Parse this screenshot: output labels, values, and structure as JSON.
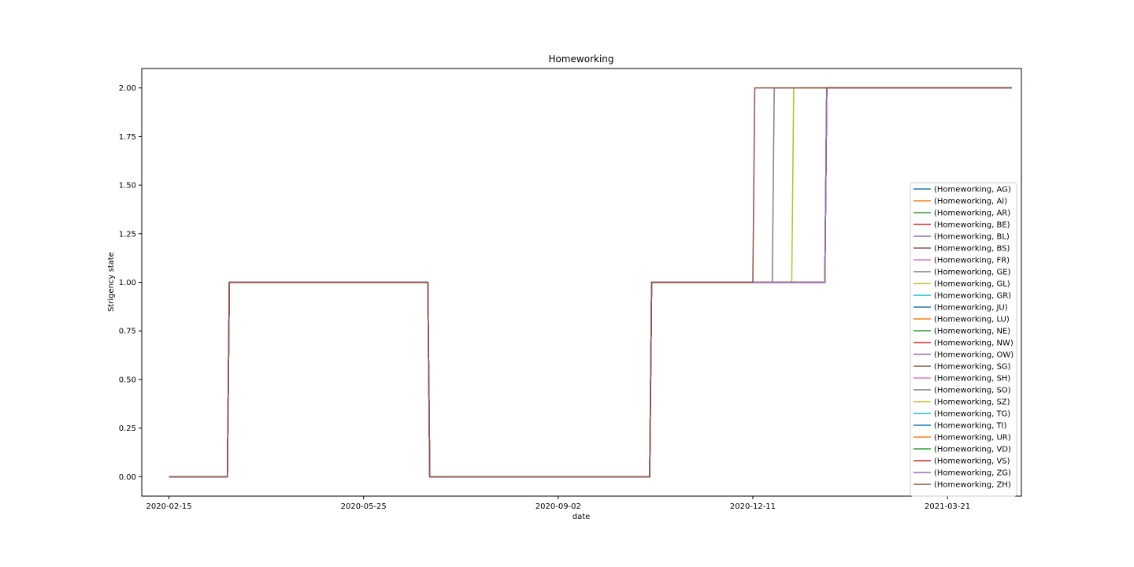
{
  "chart_data": {
    "type": "line",
    "title": "Homeworking",
    "xlabel": "date",
    "ylabel": "Strigency state",
    "x_axis": "date",
    "xlim": [
      "2020-02-01",
      "2021-04-28"
    ],
    "ylim": [
      -0.1,
      2.1
    ],
    "x_ticks": [
      "2020-02-15",
      "2020-05-25",
      "2020-09-02",
      "2020-12-11",
      "2021-03-21"
    ],
    "y_ticks": [
      "0.00",
      "0.25",
      "0.50",
      "0.75",
      "1.00",
      "1.25",
      "1.50",
      "1.75",
      "2.00"
    ],
    "grid": false,
    "legend_position": "lower right",
    "base_series": [
      {
        "x": "2020-02-15",
        "y": 0
      },
      {
        "x": "2020-03-16",
        "y": 0
      },
      {
        "x": "2020-03-17",
        "y": 1
      },
      {
        "x": "2020-06-27",
        "y": 1
      },
      {
        "x": "2020-06-28",
        "y": 0
      },
      {
        "x": "2020-10-19",
        "y": 0
      },
      {
        "x": "2020-10-20",
        "y": 1
      },
      {
        "x": "2021-01-17",
        "y": 1
      },
      {
        "x": "2021-01-18",
        "y": 2
      },
      {
        "x": "2021-04-23",
        "y": 2
      }
    ],
    "series": [
      {
        "name": "(Homeworking, AG)",
        "color": "#1f77b4",
        "step_to_2": "2021-01-18"
      },
      {
        "name": "(Homeworking, AI)",
        "color": "#ff7f0e",
        "step_to_2": "2021-01-18"
      },
      {
        "name": "(Homeworking, AR)",
        "color": "#2ca02c",
        "step_to_2": "2021-01-18"
      },
      {
        "name": "(Homeworking, BE)",
        "color": "#d62728",
        "step_to_2": "2021-01-18"
      },
      {
        "name": "(Homeworking, BL)",
        "color": "#9467bd",
        "step_to_2": "2021-01-18"
      },
      {
        "name": "(Homeworking, BS)",
        "color": "#8c564b",
        "step_to_2": "2021-01-18"
      },
      {
        "name": "(Homeworking, FR)",
        "color": "#e377c2",
        "step_to_2": "2021-01-18"
      },
      {
        "name": "(Homeworking, GE)",
        "color": "#7f7f7f",
        "step_to_2": "2020-12-22"
      },
      {
        "name": "(Homeworking, GL)",
        "color": "#bcbd22",
        "step_to_2": "2021-01-01"
      },
      {
        "name": "(Homeworking, GR)",
        "color": "#17becf",
        "step_to_2": "2021-01-18"
      },
      {
        "name": "(Homeworking, JU)",
        "color": "#1f77b4",
        "step_to_2": "2021-01-18"
      },
      {
        "name": "(Homeworking, LU)",
        "color": "#ff7f0e",
        "step_to_2": "2021-01-18"
      },
      {
        "name": "(Homeworking, NE)",
        "color": "#2ca02c",
        "step_to_2": "2021-01-18"
      },
      {
        "name": "(Homeworking, NW)",
        "color": "#d62728",
        "step_to_2": "2021-01-18"
      },
      {
        "name": "(Homeworking, OW)",
        "color": "#9467bd",
        "step_to_2": "2021-01-18"
      },
      {
        "name": "(Homeworking, SG)",
        "color": "#8c564b",
        "step_to_2": "2021-01-18"
      },
      {
        "name": "(Homeworking, SH)",
        "color": "#e377c2",
        "step_to_2": "2021-01-18"
      },
      {
        "name": "(Homeworking, SO)",
        "color": "#7f7f7f",
        "step_to_2": "2021-01-18"
      },
      {
        "name": "(Homeworking, SZ)",
        "color": "#bcbd22",
        "step_to_2": "2021-01-18"
      },
      {
        "name": "(Homeworking, TG)",
        "color": "#17becf",
        "step_to_2": "2021-01-18"
      },
      {
        "name": "(Homeworking, TI)",
        "color": "#1f77b4",
        "step_to_2": "2021-01-18"
      },
      {
        "name": "(Homeworking, UR)",
        "color": "#ff7f0e",
        "step_to_2": "2021-01-18"
      },
      {
        "name": "(Homeworking, VD)",
        "color": "#2ca02c",
        "step_to_2": "2021-01-18"
      },
      {
        "name": "(Homeworking, VS)",
        "color": "#d62728",
        "step_to_2": "2021-01-18"
      },
      {
        "name": "(Homeworking, ZG)",
        "color": "#9467bd",
        "step_to_2": "2021-01-18"
      },
      {
        "name": "(Homeworking, ZH)",
        "color": "#8c564b",
        "step_to_2": "2020-12-12"
      }
    ]
  }
}
